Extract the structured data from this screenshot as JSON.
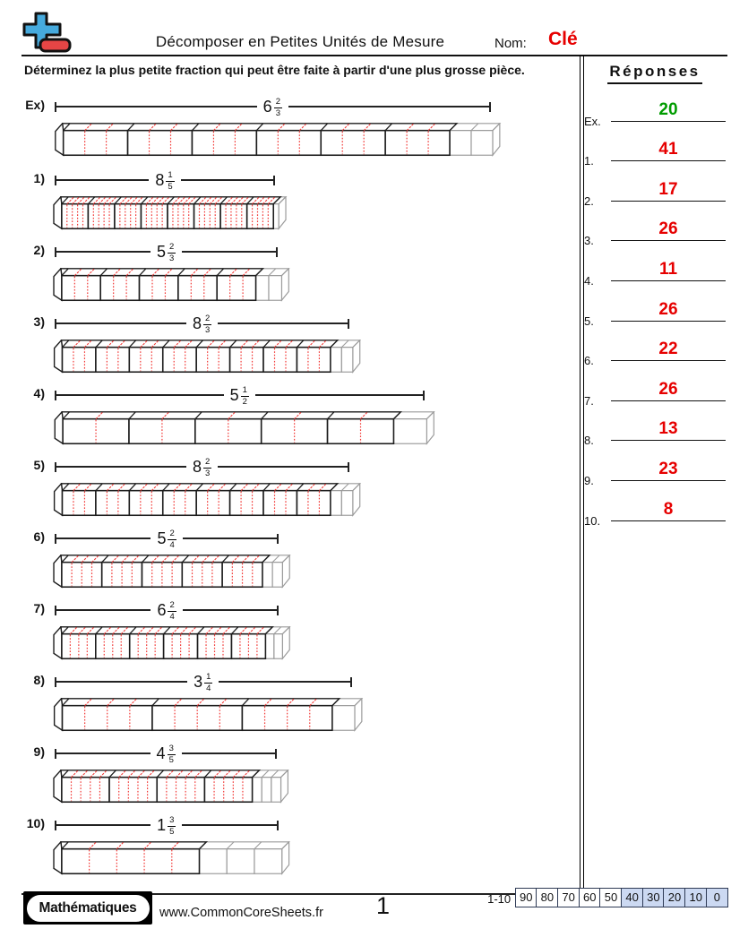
{
  "header": {
    "title": "Décomposer en Petites Unités de Mesure",
    "name_label": "Nom:",
    "name_value": "Clé"
  },
  "instruction": "Déterminez la plus petite fraction qui peut être faite à partir d'une plus grosse pièce.",
  "problems": [
    {
      "label": "Ex)",
      "whole": 6,
      "numerator": 2,
      "denominator": 3,
      "unit_width": 73
    },
    {
      "label": "1)",
      "whole": 8,
      "numerator": 1,
      "denominator": 5,
      "unit_width": 30
    },
    {
      "label": "2)",
      "whole": 5,
      "numerator": 2,
      "denominator": 3,
      "unit_width": 44
    },
    {
      "label": "3)",
      "whole": 8,
      "numerator": 2,
      "denominator": 3,
      "unit_width": 38
    },
    {
      "label": "4)",
      "whole": 5,
      "numerator": 1,
      "denominator": 2,
      "unit_width": 75
    },
    {
      "label": "5)",
      "whole": 8,
      "numerator": 2,
      "denominator": 3,
      "unit_width": 38
    },
    {
      "label": "6)",
      "whole": 5,
      "numerator": 2,
      "denominator": 4,
      "unit_width": 45.5
    },
    {
      "label": "7)",
      "whole": 6,
      "numerator": 2,
      "denominator": 4,
      "unit_width": 38.5
    },
    {
      "label": "8)",
      "whole": 3,
      "numerator": 1,
      "denominator": 4,
      "unit_width": 102
    },
    {
      "label": "9)",
      "whole": 4,
      "numerator": 3,
      "denominator": 5,
      "unit_width": 54
    },
    {
      "label": "10)",
      "whole": 1,
      "numerator": 3,
      "denominator": 5,
      "unit_width": 156
    }
  ],
  "answers_panel": {
    "title": "Réponses",
    "items": [
      {
        "label": "Ex.",
        "value": "20",
        "color": "#009c00"
      },
      {
        "label": "1.",
        "value": "41",
        "color": "#e60000"
      },
      {
        "label": "2.",
        "value": "17",
        "color": "#e60000"
      },
      {
        "label": "3.",
        "value": "26",
        "color": "#e60000"
      },
      {
        "label": "4.",
        "value": "11",
        "color": "#e60000"
      },
      {
        "label": "5.",
        "value": "26",
        "color": "#e60000"
      },
      {
        "label": "6.",
        "value": "22",
        "color": "#e60000"
      },
      {
        "label": "7.",
        "value": "26",
        "color": "#e60000"
      },
      {
        "label": "8.",
        "value": "13",
        "color": "#e60000"
      },
      {
        "label": "9.",
        "value": "23",
        "color": "#e60000"
      },
      {
        "label": "10.",
        "value": "8",
        "color": "#e60000"
      }
    ]
  },
  "footer": {
    "brand": "Mathématiques",
    "url": "www.CommonCoreSheets.fr",
    "page": "1",
    "score_label": "1-10",
    "scores": [
      {
        "value": "90",
        "highlight": false
      },
      {
        "value": "80",
        "highlight": false
      },
      {
        "value": "70",
        "highlight": false
      },
      {
        "value": "60",
        "highlight": false
      },
      {
        "value": "50",
        "highlight": false
      },
      {
        "value": "40",
        "highlight": true
      },
      {
        "value": "30",
        "highlight": true
      },
      {
        "value": "20",
        "highlight": true
      },
      {
        "value": "10",
        "highlight": true
      },
      {
        "value": "0",
        "highlight": true
      }
    ]
  },
  "colors": {
    "name_value": "#e60000",
    "bar_outline": "#1c1c1c",
    "bar_subdivision": "#f23b38",
    "bar_extra": "#9b9b9b",
    "score_highlight": "#ccd9f2",
    "logo_plus": "#46aadd",
    "logo_minus": "#e64545"
  }
}
